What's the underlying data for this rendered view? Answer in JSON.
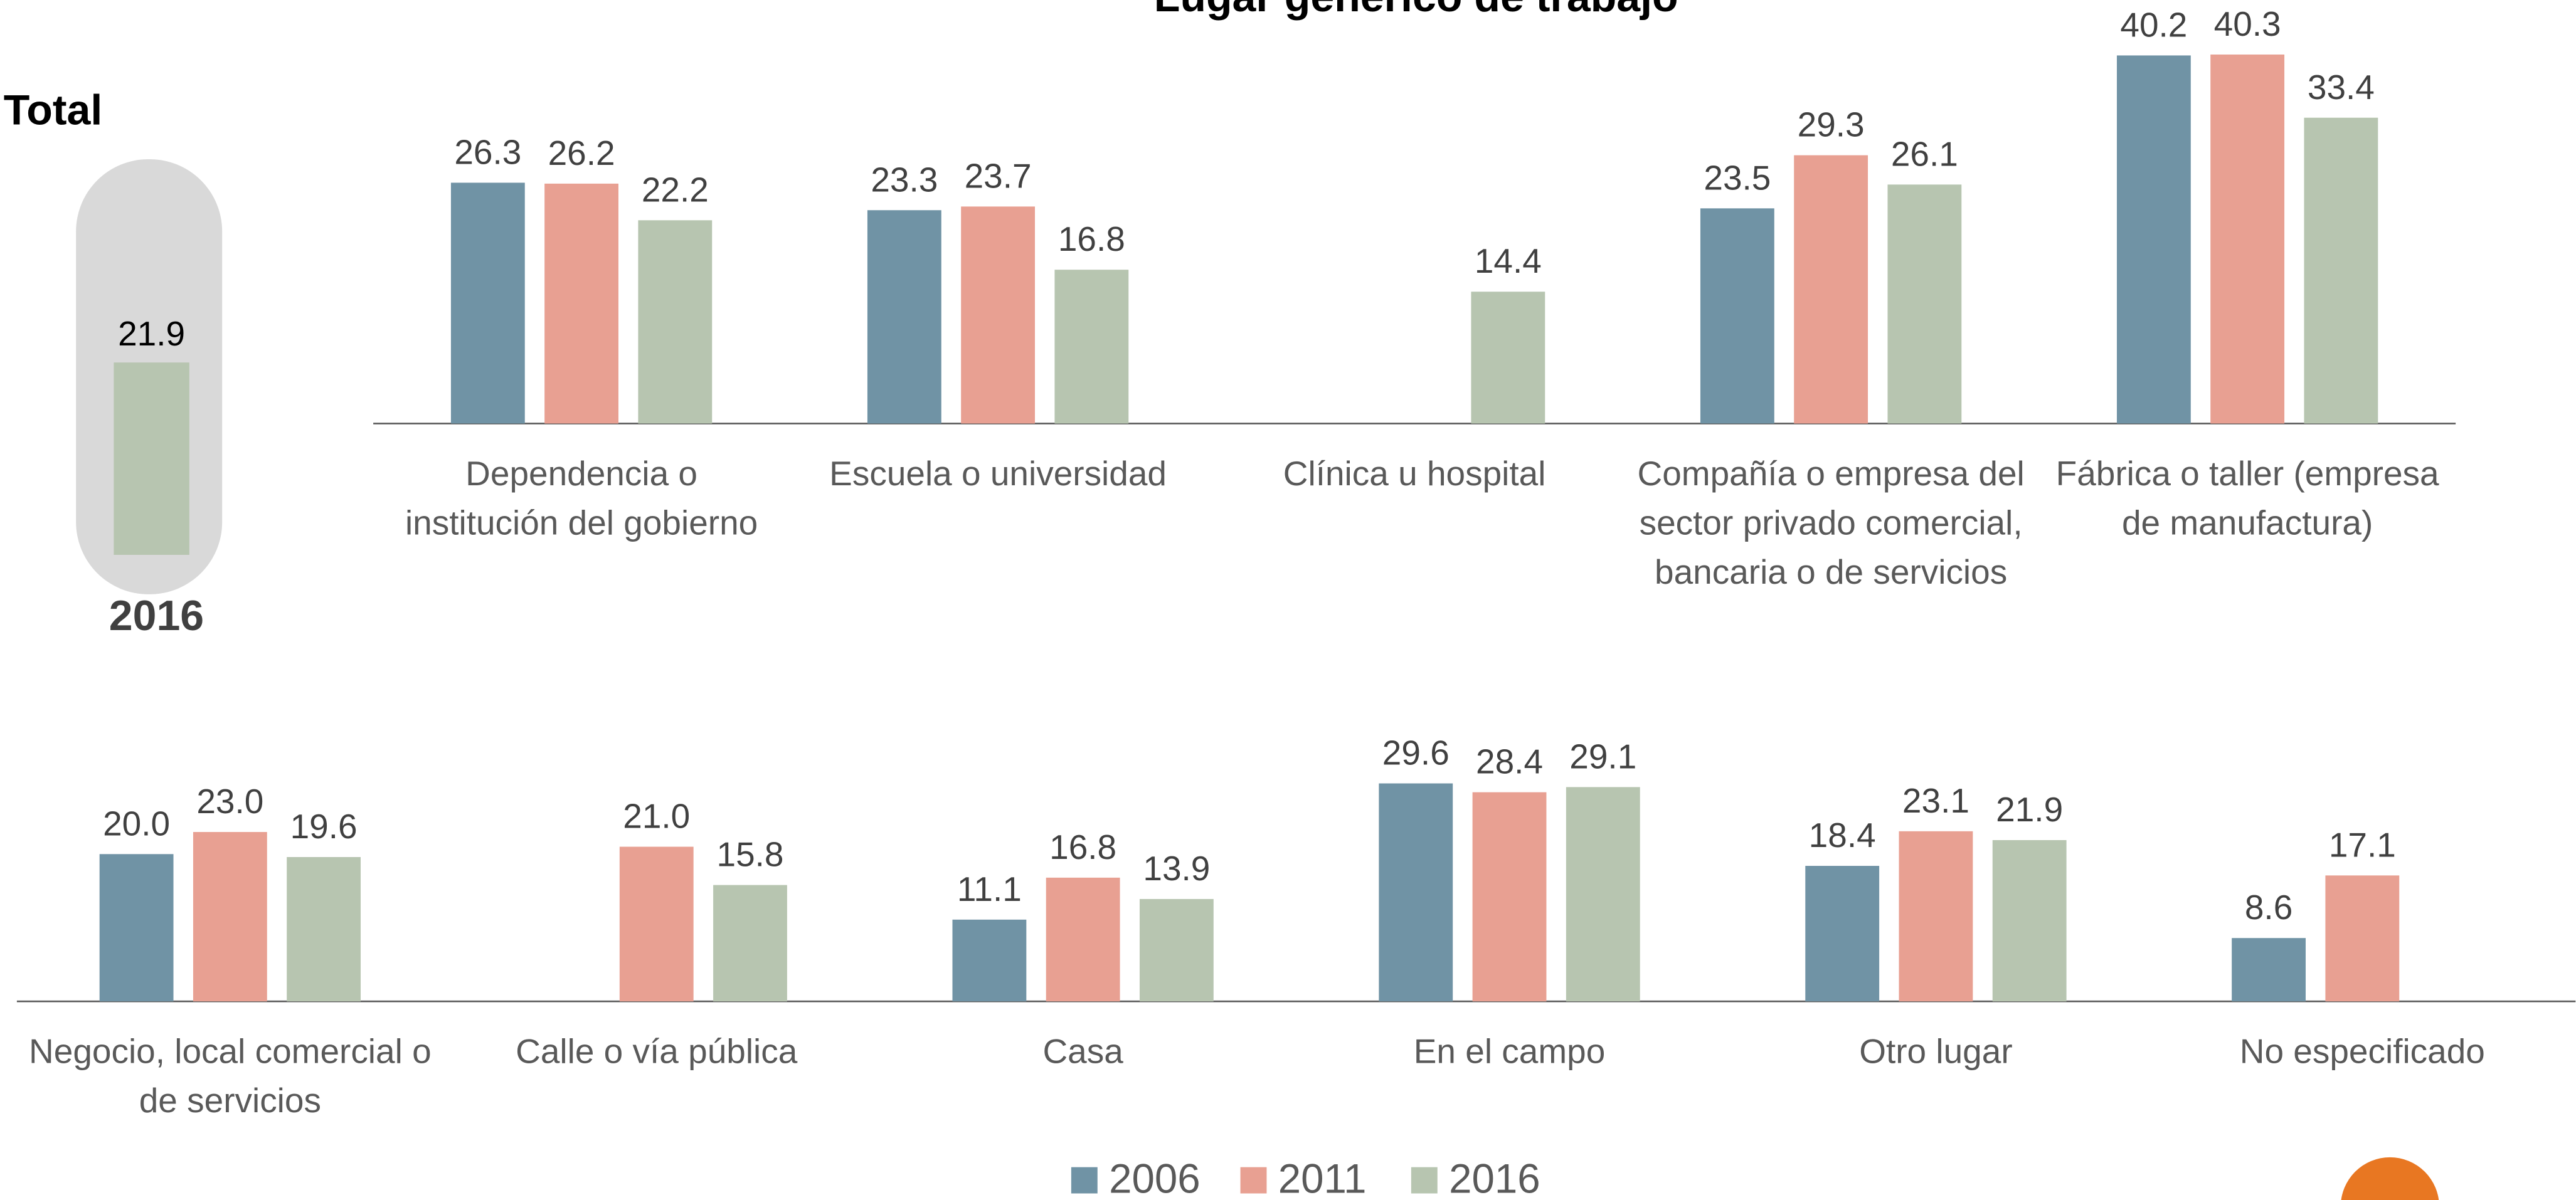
{
  "chart_data": [
    {
      "type": "bar",
      "title": "Total",
      "categories": [
        "2016"
      ],
      "values": [
        21.9
      ],
      "value_labels": [
        "21.9"
      ],
      "color": "#b7c5b0",
      "ylim": [
        0,
        40
      ]
    },
    {
      "type": "bar",
      "title": "Lugar genérico de trabajo",
      "ylim": [
        0,
        45
      ],
      "categories": [
        [
          "Dependencia o",
          "institución del gobierno"
        ],
        [
          "Escuela o universidad"
        ],
        [
          "Clínica u hospital"
        ],
        [
          "Compañía o empresa del",
          "sector privado comercial,",
          "bancaria o de servicios"
        ],
        [
          "Fábrica o taller (empresa",
          "de manufactura)"
        ]
      ],
      "series": [
        {
          "name": "2006",
          "color": "#7093a5",
          "values": [
            26.3,
            23.3,
            null,
            23.5,
            40.2
          ],
          "value_labels": [
            "26.3",
            "23.3",
            null,
            "23.5",
            "40.2"
          ]
        },
        {
          "name": "2011",
          "color": "#e8a092",
          "values": [
            26.2,
            23.7,
            null,
            29.3,
            40.3
          ],
          "value_labels": [
            "26.2",
            "23.7",
            null,
            "29.3",
            "40.3"
          ]
        },
        {
          "name": "2016",
          "color": "#b7c5b0",
          "values": [
            22.2,
            16.8,
            14.4,
            26.1,
            33.4
          ],
          "value_labels": [
            "22.2",
            "16.8",
            "14.4",
            "26.1",
            "33.4"
          ]
        }
      ]
    },
    {
      "type": "bar",
      "ylim": [
        0,
        35
      ],
      "categories": [
        [
          "Negocio, local comercial o",
          "de servicios"
        ],
        [
          "Calle o vía pública"
        ],
        [
          "Casa"
        ],
        [
          "En el campo"
        ],
        [
          "Otro lugar"
        ],
        [
          "No especificado"
        ]
      ],
      "series": [
        {
          "color": "#7093a5",
          "values": [
            20.0,
            null,
            11.1,
            29.6,
            18.4,
            8.6
          ],
          "value_labels": [
            "20.0",
            null,
            "11.1",
            "29.6",
            "18.4",
            "8.6"
          ]
        },
        {
          "color": "#e8a092",
          "values": [
            23.0,
            21.0,
            16.8,
            28.4,
            23.1,
            17.1
          ],
          "value_labels": [
            "23.0",
            "21.0",
            "16.8",
            "28.4",
            "23.1",
            "17.1"
          ]
        },
        {
          "color": "#b7c5b0",
          "values": [
            19.6,
            15.8,
            13.9,
            29.1,
            21.9,
            null
          ],
          "value_labels": [
            "19.6",
            "15.8",
            "13.9",
            "29.1",
            "21.9",
            null
          ]
        }
      ]
    }
  ]
}
